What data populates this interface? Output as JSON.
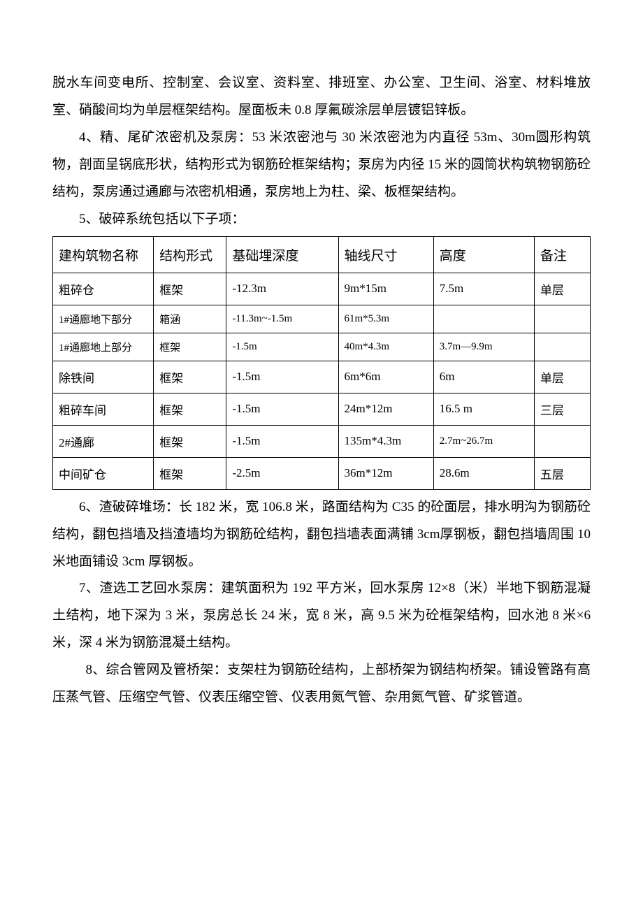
{
  "paragraphs": {
    "p1": "脱水车间变电所、控制室、会议室、资料室、排班室、办公室、卫生间、浴室、材料堆放室、硝酸间均为单层框架结构。屋面板未 0.8 厚氟碳涂层单层镀铝锌板。",
    "p2": "4、精、尾矿浓密机及泵房：53 米浓密池与 30 米浓密池为内直径 53m、30m圆形构筑物，剖面呈锅底形状，结构形式为钢筋砼框架结构；泵房为内径 15 米的圆筒状构筑物钢筋砼结构，泵房通过通廊与浓密机相通，泵房地上为柱、梁、板框架结构。",
    "p3": "5、破碎系统包括以下子项：",
    "p4": "6、渣破碎堆场：长 182 米，宽 106.8 米，路面结构为 C35 的砼面层，排水明沟为钢筋砼结构，翻包挡墙及挡渣墙均为钢筋砼结构，翻包挡墙表面满铺 3cm厚钢板，翻包挡墙周围 10 米地面铺设 3cm 厚钢板。",
    "p5": "7、渣选工艺回水泵房：建筑面积为 192 平方米，回水泵房 12×8（米）半地下钢筋混凝土结构，地下深为 3 米，泵房总长 24 米，宽 8 米，高 9.5 米为砼框架结构，回水池 8 米×6 米，深 4 米为钢筋混凝土结构。",
    "p6": "8、综合管网及管桥架：支架柱为钢筋砼结构，上部桥架为钢结构桥架。铺设管路有高压蒸气管、压缩空气管、仪表压缩空管、仪表用氮气管、杂用氮气管、矿浆管道。"
  },
  "table": {
    "columns": [
      "建构筑物名称",
      "结构形式",
      "基础埋深度",
      "轴线尺寸",
      "高度",
      "备注"
    ],
    "rows": [
      {
        "cells": [
          "粗碎仓",
          "框架",
          "-12.3m",
          "9m*15m",
          "7.5m",
          "单层"
        ],
        "small": false
      },
      {
        "cells": [
          "1#通廊地下部分",
          "箱涵",
          "-11.3m~-1.5m",
          "61m*5.3m",
          "",
          ""
        ],
        "small": true
      },
      {
        "cells": [
          "1#通廊地上部分",
          "框架",
          "-1.5m",
          "40m*4.3m",
          "3.7m—9.9m",
          ""
        ],
        "small": true
      },
      {
        "cells": [
          "除铁间",
          "框架",
          "-1.5m",
          "6m*6m",
          "6m",
          "单层"
        ],
        "small": false
      },
      {
        "cells": [
          "粗碎车间",
          "框架",
          "-1.5m",
          "24m*12m",
          "16.5 m",
          "三层"
        ],
        "small": false
      },
      {
        "cells": [
          "2#通廊",
          "框架",
          "-1.5m",
          "135m*4.3m",
          "2.7m~26.7m",
          ""
        ],
        "small": false
      },
      {
        "cells": [
          "中间矿仓",
          "框架",
          "-2.5m",
          "36m*12m",
          "28.6m",
          "五层"
        ],
        "small": false
      }
    ],
    "header_fontsize": 19,
    "cell_fontsize": 17,
    "small_cell_fontsize": 15,
    "border_color": "#000000",
    "text_color": "#000000"
  },
  "styling": {
    "body_width": 920,
    "body_height": 1302,
    "body_bg": "#ffffff",
    "font_family": "SimSun",
    "paragraph_fontsize": 19,
    "paragraph_lineheight": 2.05,
    "text_color": "#000000"
  }
}
